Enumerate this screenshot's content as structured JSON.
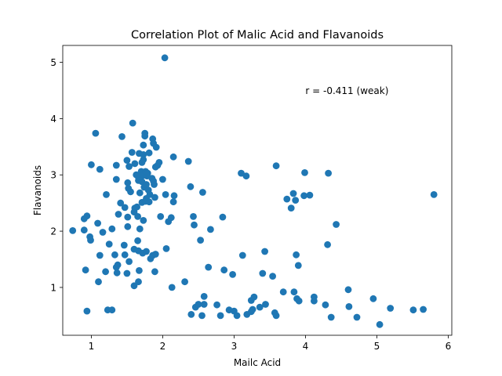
{
  "chart_data": {
    "type": "scatter",
    "title": "Correlation Plot of Malic Acid and Flavanoids",
    "xlabel": "Mailc Acid",
    "ylabel": "Flavanoids",
    "xlim": [
      0.6,
      6.05
    ],
    "ylim": [
      0.15,
      5.3
    ],
    "xticks": [
      1,
      2,
      3,
      4,
      5,
      6
    ],
    "yticks": [
      1,
      2,
      3,
      4,
      5
    ],
    "grid": false,
    "annotation": {
      "text": "r = -0.411 (weak)",
      "x": 4.0,
      "y": 4.5
    },
    "marker_color": "#1f77b4",
    "points": [
      [
        0.74,
        2.01
      ],
      [
        0.9,
        2.02
      ],
      [
        0.9,
        2.22
      ],
      [
        0.92,
        1.31
      ],
      [
        0.94,
        2.27
      ],
      [
        0.94,
        0.58
      ],
      [
        0.98,
        1.9
      ],
      [
        0.99,
        1.84
      ],
      [
        1.0,
        3.18
      ],
      [
        1.06,
        3.74
      ],
      [
        1.09,
        2.14
      ],
      [
        1.1,
        1.1
      ],
      [
        1.12,
        1.57
      ],
      [
        1.12,
        3.1
      ],
      [
        1.16,
        1.98
      ],
      [
        1.2,
        1.28
      ],
      [
        1.21,
        2.65
      ],
      [
        1.23,
        0.6
      ],
      [
        1.25,
        1.77
      ],
      [
        1.29,
        0.6
      ],
      [
        1.29,
        2.04
      ],
      [
        1.33,
        1.58
      ],
      [
        1.35,
        1.36
      ],
      [
        1.35,
        3.17
      ],
      [
        1.35,
        2.92
      ],
      [
        1.36,
        1.26
      ],
      [
        1.37,
        1.4
      ],
      [
        1.38,
        2.3
      ],
      [
        1.41,
        2.5
      ],
      [
        1.43,
        3.68
      ],
      [
        1.46,
        1.75
      ],
      [
        1.47,
        2.42
      ],
      [
        1.47,
        1.58
      ],
      [
        1.5,
        3.26
      ],
      [
        1.5,
        1.25
      ],
      [
        1.51,
        2.86
      ],
      [
        1.51,
        2.25
      ],
      [
        1.51,
        2.08
      ],
      [
        1.52,
        2.76
      ],
      [
        1.53,
        1.46
      ],
      [
        1.53,
        3.15
      ],
      [
        1.55,
        2.7
      ],
      [
        1.57,
        3.4
      ],
      [
        1.58,
        3.92
      ],
      [
        1.6,
        1.03
      ],
      [
        1.6,
        2.34
      ],
      [
        1.6,
        1.68
      ],
      [
        1.61,
        3.2
      ],
      [
        1.61,
        2.41
      ],
      [
        1.63,
        3.0
      ],
      [
        1.64,
        2.43
      ],
      [
        1.65,
        2.98
      ],
      [
        1.65,
        2.26
      ],
      [
        1.65,
        1.83
      ],
      [
        1.66,
        1.1
      ],
      [
        1.66,
        1.65
      ],
      [
        1.66,
        2.9
      ],
      [
        1.67,
        1.3
      ],
      [
        1.67,
        3.38
      ],
      [
        1.68,
        2.04
      ],
      [
        1.68,
        2.68
      ],
      [
        1.7,
        3.06
      ],
      [
        1.71,
        2.88
      ],
      [
        1.71,
        3.22
      ],
      [
        1.71,
        2.51
      ],
      [
        1.72,
        2.99
      ],
      [
        1.72,
        1.61
      ],
      [
        1.73,
        3.36
      ],
      [
        1.73,
        3.27
      ],
      [
        1.73,
        3.53
      ],
      [
        1.73,
        2.19
      ],
      [
        1.74,
        2.78
      ],
      [
        1.75,
        3.69
      ],
      [
        1.75,
        3.74
      ],
      [
        1.76,
        2.53
      ],
      [
        1.76,
        3.06
      ],
      [
        1.77,
        1.64
      ],
      [
        1.77,
        2.58
      ],
      [
        1.77,
        2.83
      ],
      [
        1.78,
        2.98
      ],
      [
        1.79,
        3.03
      ],
      [
        1.8,
        2.73
      ],
      [
        1.81,
        2.52
      ],
      [
        1.81,
        3.39
      ],
      [
        1.82,
        2.65
      ],
      [
        1.83,
        1.51
      ],
      [
        1.85,
        2.94
      ],
      [
        1.86,
        3.64
      ],
      [
        1.86,
        1.57
      ],
      [
        1.87,
        3.56
      ],
      [
        1.87,
        2.89
      ],
      [
        1.88,
        2.83
      ],
      [
        1.89,
        2.6
      ],
      [
        1.89,
        1.28
      ],
      [
        1.9,
        3.14
      ],
      [
        1.9,
        1.59
      ],
      [
        1.91,
        3.49
      ],
      [
        1.93,
        3.17
      ],
      [
        1.95,
        3.22
      ],
      [
        1.97,
        2.26
      ],
      [
        2.0,
        2.92
      ],
      [
        2.03,
        5.08
      ],
      [
        2.04,
        2.65
      ],
      [
        2.05,
        1.69
      ],
      [
        2.08,
        2.17
      ],
      [
        2.12,
        2.24
      ],
      [
        2.13,
        1.0
      ],
      [
        2.15,
        2.52
      ],
      [
        2.15,
        3.32
      ],
      [
        2.16,
        2.63
      ],
      [
        2.31,
        1.1
      ],
      [
        2.36,
        3.24
      ],
      [
        2.39,
        2.79
      ],
      [
        2.4,
        0.52
      ],
      [
        2.43,
        2.26
      ],
      [
        2.44,
        2.11
      ],
      [
        2.46,
        0.65
      ],
      [
        2.5,
        0.7
      ],
      [
        2.53,
        1.84
      ],
      [
        2.55,
        0.5
      ],
      [
        2.56,
        2.69
      ],
      [
        2.58,
        0.84
      ],
      [
        2.58,
        0.7
      ],
      [
        2.64,
        1.36
      ],
      [
        2.67,
        2.03
      ],
      [
        2.76,
        0.69
      ],
      [
        2.81,
        0.5
      ],
      [
        2.84,
        2.25
      ],
      [
        2.86,
        1.31
      ],
      [
        2.93,
        0.6
      ],
      [
        2.98,
        1.23
      ],
      [
        3.0,
        0.58
      ],
      [
        3.04,
        0.5
      ],
      [
        3.1,
        3.03
      ],
      [
        3.12,
        1.57
      ],
      [
        3.17,
        2.98
      ],
      [
        3.18,
        0.52
      ],
      [
        3.24,
        0.57
      ],
      [
        3.24,
        0.77
      ],
      [
        3.26,
        0.61
      ],
      [
        3.28,
        0.83
      ],
      [
        3.36,
        0.65
      ],
      [
        3.4,
        1.25
      ],
      [
        3.43,
        1.64
      ],
      [
        3.44,
        0.7
      ],
      [
        3.54,
        1.2
      ],
      [
        3.57,
        0.55
      ],
      [
        3.59,
        0.5
      ],
      [
        3.59,
        3.16
      ],
      [
        3.69,
        0.92
      ],
      [
        3.74,
        2.57
      ],
      [
        3.8,
        2.41
      ],
      [
        3.83,
        2.67
      ],
      [
        3.84,
        0.92
      ],
      [
        3.86,
        2.55
      ],
      [
        3.87,
        1.58
      ],
      [
        3.88,
        0.8
      ],
      [
        3.9,
        1.39
      ],
      [
        3.91,
        0.76
      ],
      [
        3.98,
        2.63
      ],
      [
        3.99,
        3.04
      ],
      [
        4.06,
        2.64
      ],
      [
        4.12,
        0.76
      ],
      [
        4.12,
        0.83
      ],
      [
        4.28,
        0.69
      ],
      [
        4.31,
        1.76
      ],
      [
        4.32,
        3.03
      ],
      [
        4.36,
        0.47
      ],
      [
        4.43,
        2.12
      ],
      [
        4.6,
        0.96
      ],
      [
        4.61,
        0.66
      ],
      [
        4.72,
        0.47
      ],
      [
        4.95,
        0.8
      ],
      [
        5.04,
        0.34
      ],
      [
        5.19,
        0.63
      ],
      [
        5.51,
        0.6
      ],
      [
        5.65,
        0.61
      ],
      [
        5.8,
        2.65
      ]
    ]
  }
}
